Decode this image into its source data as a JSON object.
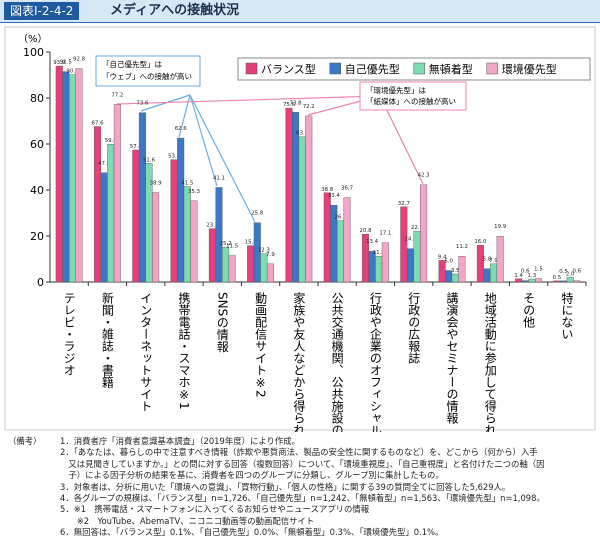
{
  "header": {
    "number": "図表Ⅰ-2-4-2",
    "title": "メディアへの接触状況"
  },
  "chart_data": {
    "type": "bar",
    "y_label": "（%）",
    "categories": [
      "テレビ・ラジオ",
      "新聞・雑誌・書籍",
      "インターネットサイト",
      "携帯電話・スマホ※1",
      "SNSの情報",
      "動画配信サイト※2",
      "家族や友人などから得られる情報",
      "公共交通機関、公共施設の掲示物",
      "行政や企業のオフィシャルサイト",
      "行政の広報誌",
      "講演会やセミナーの情報",
      "地域活動に参加して得られる情報",
      "その他",
      "特にない"
    ],
    "series": [
      {
        "name": "バランス型",
        "color": "#e5407c",
        "values": [
          93.9,
          67.6,
          57.4,
          53.2,
          23.2,
          15.8,
          75.6,
          38.8,
          20.8,
          32.7,
          9.4,
          16.0,
          1.4,
          0.5
        ],
        "value_labels": [
          "93.9",
          "67.6",
          "57.4",
          "53.2",
          "23.2",
          "15.8",
          "75.6",
          "38.8",
          "20.8",
          "32.7",
          "9.4",
          "16.0",
          "1.4",
          "0.5"
        ]
      },
      {
        "name": "自己優先型",
        "color": "#3b78c6",
        "values": [
          91.5,
          47.5,
          73.6,
          62.6,
          41.1,
          25.8,
          73.8,
          33.4,
          13.4,
          14.5,
          5.0,
          5.8,
          0.6,
          0.5
        ],
        "value_labels": [
          "91.5",
          "47.5",
          "73.6",
          "62.6",
          "41.1",
          "25.8",
          "73.8",
          "33.4",
          "13.4",
          "14.5",
          "5.0",
          "5.8",
          "0.6",
          "0.5"
        ]
      },
      {
        "name": "無頓着型",
        "color": "#7ddbb0",
        "values": [
          90.2,
          59.9,
          51.6,
          41.5,
          15.2,
          12.3,
          63.2,
          26.7,
          11.2,
          22.1,
          3.5,
          7.9,
          1.3,
          2.0
        ],
        "value_labels": [
          "90.2",
          "59.9",
          "51.6",
          "41.5",
          "15.2",
          "12.3",
          "63.2",
          "26.7",
          "11.2",
          "22.1",
          "3.5",
          "7.9",
          "1.3",
          "2.0"
        ]
      },
      {
        "name": "環境優先型",
        "color": "#f3a4c8",
        "values": [
          92.8,
          77.2,
          38.9,
          35.3,
          11.5,
          7.9,
          72.2,
          36.7,
          17.1,
          42.3,
          11.2,
          19.9,
          1.5,
          0.6
        ],
        "value_labels": [
          "92.8",
          "77.2",
          "38.9",
          "35.3",
          "11.5",
          "7.9",
          "72.2",
          "36.7",
          "17.1",
          "42.3",
          "11.2",
          "19.9",
          "1.5",
          "0.6"
        ]
      }
    ],
    "ylim": [
      0,
      100
    ],
    "yticks": [
      0,
      20,
      40,
      60,
      80,
      100
    ],
    "grid": false,
    "annotations": [
      {
        "lines": [
          "「自己優先型」は",
          "「ウェブ」への接触が高い"
        ]
      },
      {
        "lines": [
          "「環境優先型」は",
          "「紙媒体」への接触が高い"
        ]
      }
    ]
  },
  "notes": {
    "label": "（備考）",
    "lines": [
      "1．消費者庁「消費者意識基本調査」（2019年度）により作成。",
      "2．「あなたは、暮らしの中で注意すべき情報（詐欺や悪質商法、製品の安全性に関するものなど）を、どこから（何から）入手",
      "　又は見聞きしていますか。」との問に対する回答（複数回答）について、「環境重視度」、「自己重視度」と名付けた二つの軸（因",
      "　子）による因子分析の結果を基に、消費者を四つのグループに分類し、グループ別に集計したもの。",
      "3．対象者は、分析に用いた「環境への意識」、「買物行動」、「個人の性格」に関する39の質問全てに回答した5,629人。",
      "4．各グループの規模は、「バランス型」n=1,726、「自己優先型」n=1,242、「無頓着型」n=1,563、「環境優先型」n=1,098。",
      "5．※1　携帯電話・スマートフォンに入ってくるお知らせやニュースアプリの情報",
      "　　※2　YouTube、AbemaTV、ニコニコ動画等の動画配信サイト",
      "6．無回答は、「バランス型」0.1%、「自己優先型」0.0%、「無頓着型」0.3%、「環境優先型」0.1%。"
    ]
  }
}
